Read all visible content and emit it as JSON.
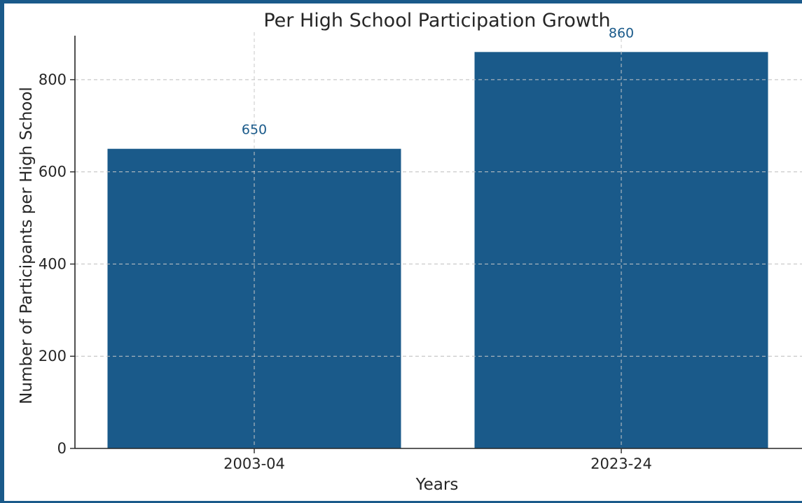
{
  "chart_data": {
    "type": "bar",
    "title": "Per High School Participation Growth",
    "xlabel": "Years",
    "ylabel": "Number of Participants per High School",
    "categories": [
      "2003-04",
      "2023-24"
    ],
    "values": [
      650,
      860
    ],
    "data_labels": [
      "650",
      "860"
    ],
    "ylim": [
      0,
      903
    ],
    "yticks": [
      0,
      200,
      400,
      600,
      800
    ],
    "grid": true,
    "bar_color": "#1a5a8a",
    "label_color": "#1a5a8a"
  }
}
